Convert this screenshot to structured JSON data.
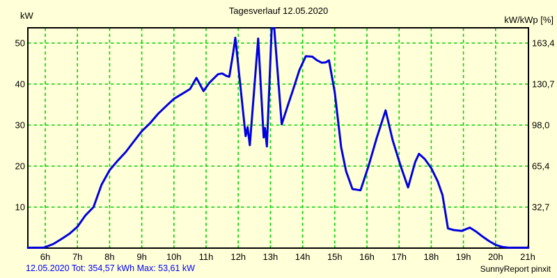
{
  "colors": {
    "background": "#FFFFD8",
    "grid": "#00D400",
    "curve": "#0000E0",
    "summary_text": "#0000FF",
    "axis": "#000000"
  },
  "header": {
    "left_unit": "kW",
    "title": "Tagesverlauf 12.05.2020",
    "right_unit": "kW/kWp [%]"
  },
  "footer": {
    "summary": "12.05.2020 Tot: 354,57 kWh Max: 53,61 kW",
    "credit": "SunnyReport pinxit"
  },
  "chart_data": {
    "type": "line",
    "title": "Tagesverlauf 12.05.2020",
    "grid": "dashed green, on",
    "legend": "none",
    "x_axis": {
      "tick_hours": [
        6,
        7,
        8,
        9,
        10,
        11,
        12,
        13,
        14,
        15,
        16,
        17,
        18,
        19,
        20,
        21
      ],
      "tick_labels": [
        "6h",
        "7h",
        "8h",
        "9h",
        "10h",
        "11h",
        "12h",
        "13h",
        "14h",
        "15h",
        "16h",
        "17h",
        "18h",
        "19h",
        "20h",
        "21h"
      ],
      "range_hours": [
        5.46,
        21.02
      ]
    },
    "y_left": {
      "unit": "kW",
      "ticks": [
        10,
        20,
        30,
        40,
        50
      ],
      "range": [
        0,
        53.7
      ]
    },
    "y_right": {
      "unit": "kW/kWp [%]",
      "tick_labels": [
        "32,7",
        "65,4",
        "98,0",
        "130,7",
        "163,4"
      ]
    },
    "stats": {
      "date": "12.05.2020",
      "total_kwh": "354,57",
      "max_kw": "53,61"
    },
    "series": [
      {
        "name": "pv-power-kw",
        "color": "#0000E0",
        "points": [
          [
            5.46,
            0.1
          ],
          [
            5.95,
            0.1
          ],
          [
            6.0,
            0.25
          ],
          [
            6.25,
            1.0
          ],
          [
            6.5,
            2.2
          ],
          [
            6.75,
            3.5
          ],
          [
            7.0,
            5.2
          ],
          [
            7.25,
            8.0
          ],
          [
            7.5,
            10.0
          ],
          [
            7.75,
            15.5
          ],
          [
            8.0,
            19.0
          ],
          [
            8.25,
            21.3
          ],
          [
            8.5,
            23.4
          ],
          [
            8.75,
            26.0
          ],
          [
            9.0,
            28.5
          ],
          [
            9.25,
            30.4
          ],
          [
            9.5,
            32.7
          ],
          [
            9.75,
            34.6
          ],
          [
            10.0,
            36.4
          ],
          [
            10.25,
            37.6
          ],
          [
            10.5,
            38.8
          ],
          [
            10.7,
            41.5
          ],
          [
            10.92,
            38.3
          ],
          [
            11.1,
            40.3
          ],
          [
            11.37,
            42.4
          ],
          [
            11.5,
            42.6
          ],
          [
            11.63,
            42.0
          ],
          [
            11.72,
            41.8
          ],
          [
            11.84,
            47.5
          ],
          [
            11.91,
            51.3
          ],
          [
            12.23,
            27.3
          ],
          [
            12.29,
            29.5
          ],
          [
            12.36,
            25.1
          ],
          [
            12.62,
            51.1
          ],
          [
            12.79,
            27.0
          ],
          [
            12.83,
            29.3
          ],
          [
            12.89,
            24.8
          ],
          [
            13.04,
            53.6
          ],
          [
            13.12,
            53.6
          ],
          [
            13.35,
            30.2
          ],
          [
            13.55,
            35.0
          ],
          [
            13.7,
            38.5
          ],
          [
            13.9,
            43.4
          ],
          [
            14.1,
            46.8
          ],
          [
            14.3,
            46.7
          ],
          [
            14.45,
            45.8
          ],
          [
            14.6,
            45.2
          ],
          [
            14.72,
            45.3
          ],
          [
            14.82,
            45.8
          ],
          [
            15.0,
            38.0
          ],
          [
            15.2,
            24.6
          ],
          [
            15.35,
            18.8
          ],
          [
            15.55,
            14.4
          ],
          [
            15.8,
            14.1
          ],
          [
            16.05,
            20.0
          ],
          [
            16.3,
            26.8
          ],
          [
            16.58,
            33.6
          ],
          [
            16.8,
            26.3
          ],
          [
            17.05,
            20.0
          ],
          [
            17.28,
            14.8
          ],
          [
            17.5,
            21.0
          ],
          [
            17.62,
            23.0
          ],
          [
            17.8,
            21.7
          ],
          [
            18.0,
            19.5
          ],
          [
            18.2,
            16.3
          ],
          [
            18.35,
            12.9
          ],
          [
            18.52,
            4.8
          ],
          [
            18.7,
            4.4
          ],
          [
            18.95,
            4.2
          ],
          [
            19.2,
            5.0
          ],
          [
            19.4,
            4.0
          ],
          [
            19.6,
            2.8
          ],
          [
            19.8,
            1.7
          ],
          [
            20.0,
            0.8
          ],
          [
            20.2,
            0.3
          ],
          [
            20.4,
            0.1
          ],
          [
            21.02,
            0.1
          ]
        ]
      }
    ]
  }
}
